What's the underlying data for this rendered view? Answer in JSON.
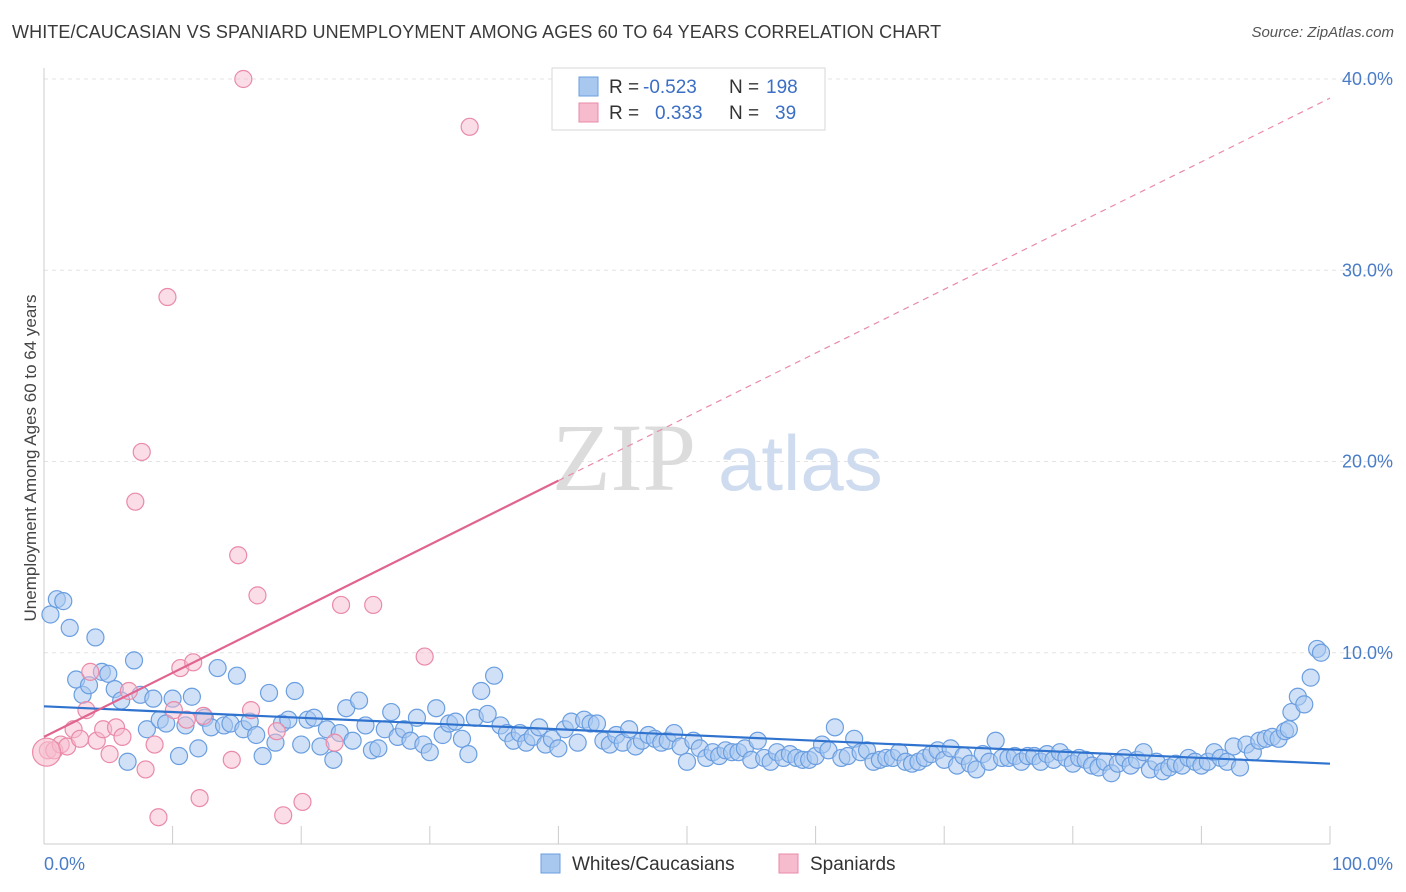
{
  "title": "WHITE/CAUCASIAN VS SPANIARD UNEMPLOYMENT AMONG AGES 60 TO 64 YEARS CORRELATION CHART",
  "source": "Source: ZipAtlas.com",
  "watermark": {
    "zip": "ZIP",
    "atlas": "atlas"
  },
  "colors": {
    "blue_fill": "#a9c8f0",
    "blue_stroke": "#6a9ee0",
    "blue_line": "#2f73cf",
    "pink_fill": "#f6bccd",
    "pink_stroke": "#ea8aa8",
    "pink_line": "#e0648f",
    "tick": "#4a7cc7",
    "grid": "#e3e3e3"
  },
  "stats_legend": {
    "rows": [
      {
        "r_label": "R =",
        "r_value": "-0.523",
        "n_label": "N =",
        "n_value": "198",
        "series": "blue"
      },
      {
        "r_label": "R =",
        "r_value": "0.333",
        "n_label": "N =",
        "n_value": "39",
        "series": "pink"
      }
    ]
  },
  "chart_data": {
    "type": "scatter",
    "title": "WHITE/CAUCASIAN VS SPANIARD UNEMPLOYMENT AMONG AGES 60 TO 64 YEARS CORRELATION CHART",
    "xlabel": "",
    "ylabel": "Unemployment Among Ages 60 to 64 years",
    "xlim": [
      0,
      100
    ],
    "ylim": [
      0,
      40
    ],
    "x_tick_labels": [
      "0.0%",
      "100.0%"
    ],
    "y_ticks": [
      10,
      20,
      30,
      40
    ],
    "y_tick_labels": [
      "10.0%",
      "20.0%",
      "30.0%",
      "40.0%"
    ],
    "grid": true,
    "legend_position": "bottom",
    "series": [
      {
        "name": "Whites/Caucasians",
        "color": "#a9c8f0",
        "trend": {
          "x": [
            0,
            100
          ],
          "y": [
            7.2,
            4.2
          ],
          "style": "solid"
        },
        "points": [
          [
            0.5,
            12.0
          ],
          [
            1,
            12.8
          ],
          [
            1.5,
            12.7
          ],
          [
            2,
            11.3
          ],
          [
            2.5,
            8.6
          ],
          [
            3,
            7.8
          ],
          [
            3.5,
            8.3
          ],
          [
            4,
            10.8
          ],
          [
            4.5,
            9.0
          ],
          [
            5,
            8.9
          ],
          [
            5.5,
            8.1
          ],
          [
            6,
            7.5
          ],
          [
            6.5,
            4.3
          ],
          [
            7,
            9.6
          ],
          [
            7.5,
            7.8
          ],
          [
            8,
            6.0
          ],
          [
            8.5,
            7.6
          ],
          [
            9,
            6.5
          ],
          [
            9.5,
            6.3
          ],
          [
            10,
            7.6
          ],
          [
            10.5,
            4.6
          ],
          [
            11,
            6.2
          ],
          [
            11.5,
            7.7
          ],
          [
            12,
            5.0
          ],
          [
            12.5,
            6.6
          ],
          [
            13,
            6.1
          ],
          [
            13.5,
            9.2
          ],
          [
            14,
            6.2
          ],
          [
            14.5,
            6.3
          ],
          [
            15,
            8.8
          ],
          [
            15.5,
            6.0
          ],
          [
            16,
            6.4
          ],
          [
            16.5,
            5.7
          ],
          [
            17,
            4.6
          ],
          [
            17.5,
            7.9
          ],
          [
            18,
            5.3
          ],
          [
            18.5,
            6.3
          ],
          [
            19,
            6.5
          ],
          [
            19.5,
            8.0
          ],
          [
            20,
            5.2
          ],
          [
            20.5,
            6.5
          ],
          [
            21,
            6.6
          ],
          [
            21.5,
            5.1
          ],
          [
            22,
            6.0
          ],
          [
            22.5,
            4.4
          ],
          [
            23,
            5.8
          ],
          [
            23.5,
            7.1
          ],
          [
            24,
            5.4
          ],
          [
            24.5,
            7.5
          ],
          [
            25,
            6.2
          ],
          [
            25.5,
            4.9
          ],
          [
            26,
            5.0
          ],
          [
            26.5,
            6.0
          ],
          [
            27,
            6.9
          ],
          [
            27.5,
            5.6
          ],
          [
            28,
            6.0
          ],
          [
            28.5,
            5.4
          ],
          [
            29,
            6.6
          ],
          [
            29.5,
            5.2
          ],
          [
            30,
            4.8
          ],
          [
            30.5,
            7.1
          ],
          [
            31,
            5.7
          ],
          [
            31.5,
            6.3
          ],
          [
            32,
            6.4
          ],
          [
            32.5,
            5.5
          ],
          [
            33,
            4.7
          ],
          [
            33.5,
            6.6
          ],
          [
            34,
            8.0
          ],
          [
            34.5,
            6.8
          ],
          [
            35,
            8.8
          ],
          [
            35.5,
            6.2
          ],
          [
            36,
            5.8
          ],
          [
            36.5,
            5.4
          ],
          [
            37,
            5.8
          ],
          [
            37.5,
            5.3
          ],
          [
            38,
            5.6
          ],
          [
            38.5,
            6.1
          ],
          [
            39,
            5.2
          ],
          [
            39.5,
            5.5
          ],
          [
            40,
            5.0
          ],
          [
            40.5,
            6.0
          ],
          [
            41,
            6.4
          ],
          [
            41.5,
            5.3
          ],
          [
            42,
            6.5
          ],
          [
            42.5,
            6.3
          ],
          [
            43,
            6.3
          ],
          [
            43.5,
            5.4
          ],
          [
            44,
            5.2
          ],
          [
            44.5,
            5.7
          ],
          [
            45,
            5.3
          ],
          [
            45.5,
            6.0
          ],
          [
            46,
            5.1
          ],
          [
            46.5,
            5.4
          ],
          [
            47,
            5.7
          ],
          [
            47.5,
            5.5
          ],
          [
            48,
            5.3
          ],
          [
            48.5,
            5.4
          ],
          [
            49,
            5.8
          ],
          [
            49.5,
            5.1
          ],
          [
            50,
            4.3
          ],
          [
            50.5,
            5.4
          ],
          [
            51,
            5.0
          ],
          [
            51.5,
            4.5
          ],
          [
            52,
            4.8
          ],
          [
            52.5,
            4.6
          ],
          [
            53,
            4.9
          ],
          [
            53.5,
            4.8
          ],
          [
            54,
            4.8
          ],
          [
            54.5,
            5.0
          ],
          [
            55,
            4.4
          ],
          [
            55.5,
            5.4
          ],
          [
            56,
            4.5
          ],
          [
            56.5,
            4.3
          ],
          [
            57,
            4.8
          ],
          [
            57.5,
            4.5
          ],
          [
            58,
            4.7
          ],
          [
            58.5,
            4.5
          ],
          [
            59,
            4.4
          ],
          [
            59.5,
            4.4
          ],
          [
            60,
            4.6
          ],
          [
            60.5,
            5.2
          ],
          [
            61,
            4.9
          ],
          [
            61.5,
            6.1
          ],
          [
            62,
            4.5
          ],
          [
            62.5,
            4.6
          ],
          [
            63,
            5.5
          ],
          [
            63.5,
            4.8
          ],
          [
            64,
            4.9
          ],
          [
            64.5,
            4.3
          ],
          [
            65,
            4.4
          ],
          [
            65.5,
            4.5
          ],
          [
            66,
            4.5
          ],
          [
            66.5,
            4.8
          ],
          [
            67,
            4.3
          ],
          [
            67.5,
            4.2
          ],
          [
            68,
            4.3
          ],
          [
            68.5,
            4.5
          ],
          [
            69,
            4.7
          ],
          [
            69.5,
            4.9
          ],
          [
            70,
            4.4
          ],
          [
            70.5,
            5.0
          ],
          [
            71,
            4.1
          ],
          [
            71.5,
            4.6
          ],
          [
            72,
            4.2
          ],
          [
            72.5,
            3.9
          ],
          [
            73,
            4.7
          ],
          [
            73.5,
            4.3
          ],
          [
            74,
            5.4
          ],
          [
            74.5,
            4.5
          ],
          [
            75,
            4.5
          ],
          [
            75.5,
            4.6
          ],
          [
            76,
            4.3
          ],
          [
            76.5,
            4.6
          ],
          [
            77,
            4.6
          ],
          [
            77.5,
            4.3
          ],
          [
            78,
            4.7
          ],
          [
            78.5,
            4.4
          ],
          [
            79,
            4.8
          ],
          [
            79.5,
            4.5
          ],
          [
            80,
            4.2
          ],
          [
            80.5,
            4.5
          ],
          [
            81,
            4.4
          ],
          [
            81.5,
            4.1
          ],
          [
            82,
            4.0
          ],
          [
            82.5,
            4.3
          ],
          [
            83,
            3.7
          ],
          [
            83.5,
            4.2
          ],
          [
            84,
            4.5
          ],
          [
            84.5,
            4.1
          ],
          [
            85,
            4.4
          ],
          [
            85.5,
            4.8
          ],
          [
            86,
            3.9
          ],
          [
            86.5,
            4.3
          ],
          [
            87,
            3.8
          ],
          [
            87.5,
            4.0
          ],
          [
            88,
            4.2
          ],
          [
            88.5,
            4.1
          ],
          [
            89,
            4.5
          ],
          [
            89.5,
            4.3
          ],
          [
            90,
            4.1
          ],
          [
            90.5,
            4.3
          ],
          [
            91,
            4.8
          ],
          [
            91.5,
            4.5
          ],
          [
            92,
            4.3
          ],
          [
            92.5,
            5.1
          ],
          [
            93,
            4.0
          ],
          [
            93.5,
            5.2
          ],
          [
            94,
            4.8
          ],
          [
            94.5,
            5.4
          ],
          [
            95,
            5.5
          ],
          [
            95.5,
            5.6
          ],
          [
            96,
            5.5
          ],
          [
            96.5,
            5.9
          ],
          [
            97,
            6.9
          ],
          [
            97.5,
            7.7
          ],
          [
            98,
            7.3
          ],
          [
            98.5,
            8.7
          ],
          [
            99,
            10.2
          ],
          [
            99.3,
            10.0
          ],
          [
            96.8,
            6.0
          ]
        ]
      },
      {
        "name": "Spaniards",
        "color": "#f6bccd",
        "trend": {
          "x": [
            0,
            40
          ],
          "y": [
            5.6,
            19.0
          ],
          "extension": {
            "x": [
              40,
              100
            ],
            "y": [
              19.0,
              39.0
            ]
          }
        },
        "points": [
          [
            0.3,
            4.9
          ],
          [
            0.8,
            4.9
          ],
          [
            1.3,
            5.2
          ],
          [
            1.8,
            5.1
          ],
          [
            2.3,
            6.0
          ],
          [
            2.8,
            5.5
          ],
          [
            3.3,
            7.0
          ],
          [
            3.6,
            9.0
          ],
          [
            4.1,
            5.4
          ],
          [
            4.6,
            6.0
          ],
          [
            5.1,
            4.7
          ],
          [
            5.6,
            6.1
          ],
          [
            6.1,
            5.6
          ],
          [
            6.6,
            8.0
          ],
          [
            7.6,
            20.5
          ],
          [
            7.1,
            17.9
          ],
          [
            7.9,
            3.9
          ],
          [
            8.6,
            5.2
          ],
          [
            8.9,
            1.4
          ],
          [
            9.6,
            28.6
          ],
          [
            10.1,
            7.0
          ],
          [
            10.6,
            9.2
          ],
          [
            11.1,
            6.5
          ],
          [
            11.6,
            9.5
          ],
          [
            12.1,
            2.4
          ],
          [
            12.4,
            6.7
          ],
          [
            14.6,
            4.4
          ],
          [
            15.1,
            15.1
          ],
          [
            16.1,
            7.0
          ],
          [
            16.6,
            13.0
          ],
          [
            18.1,
            5.9
          ],
          [
            18.6,
            1.5
          ],
          [
            20.1,
            2.2
          ],
          [
            22.6,
            5.3
          ],
          [
            23.1,
            12.5
          ],
          [
            25.6,
            12.5
          ],
          [
            29.6,
            9.8
          ],
          [
            33.1,
            37.5
          ],
          [
            15.5,
            40.0
          ]
        ]
      }
    ]
  }
}
